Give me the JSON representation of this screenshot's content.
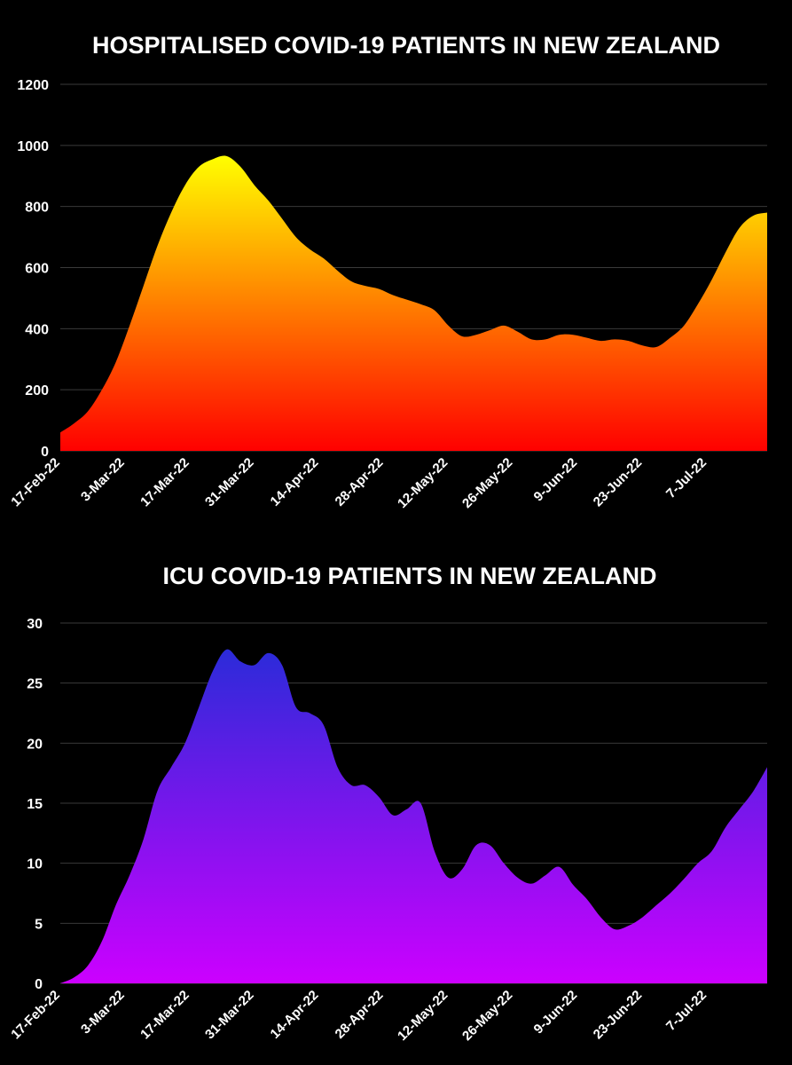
{
  "chart_data": [
    {
      "type": "area",
      "title": "HOSPITALISED COVID-19 PATIENTS IN NEW ZEALAND",
      "xlabel": "",
      "ylabel": "",
      "ylim": [
        0,
        1200
      ],
      "yticks": [
        "0",
        "200",
        "400",
        "600",
        "800",
        "1000",
        "1200"
      ],
      "xticks": [
        "17-Feb-22",
        "3-Mar-22",
        "17-Mar-22",
        "31-Mar-22",
        "14-Apr-22",
        "28-Apr-22",
        "12-May-22",
        "26-May-22",
        "9-Jun-22",
        "23-Jun-22",
        "7-Jul-22"
      ],
      "x_start": "17-Feb-22",
      "x_end": "20-Jul-22",
      "grid": true,
      "gradient_colors": [
        "#ffff00",
        "#ff0000"
      ],
      "series": [
        {
          "x": [
            "17-Feb-22",
            "20-Feb-22",
            "23-Feb-22",
            "26-Feb-22",
            "1-Mar-22",
            "4-Mar-22",
            "7-Mar-22",
            "10-Mar-22",
            "13-Mar-22",
            "16-Mar-22",
            "19-Mar-22",
            "22-Mar-22",
            "25-Mar-22",
            "28-Mar-22",
            "31-Mar-22",
            "3-Apr-22",
            "6-Apr-22",
            "9-Apr-22",
            "12-Apr-22",
            "15-Apr-22",
            "18-Apr-22",
            "21-Apr-22",
            "24-Apr-22",
            "27-Apr-22",
            "30-Apr-22",
            "3-May-22",
            "6-May-22",
            "9-May-22",
            "12-May-22",
            "15-May-22",
            "18-May-22",
            "21-May-22",
            "24-May-22",
            "27-May-22",
            "30-May-22",
            "2-Jun-22",
            "5-Jun-22",
            "8-Jun-22",
            "11-Jun-22",
            "14-Jun-22",
            "17-Jun-22",
            "20-Jun-22",
            "23-Jun-22",
            "26-Jun-22",
            "29-Jun-22",
            "2-Jul-22",
            "5-Jul-22",
            "8-Jul-22",
            "11-Jul-22",
            "14-Jul-22",
            "17-Jul-22",
            "20-Jul-22"
          ],
          "values": [
            60,
            90,
            130,
            200,
            290,
            410,
            540,
            670,
            780,
            870,
            930,
            955,
            965,
            930,
            870,
            820,
            760,
            700,
            660,
            630,
            590,
            555,
            540,
            530,
            510,
            495,
            480,
            460,
            410,
            375,
            380,
            395,
            410,
            390,
            365,
            365,
            380,
            380,
            370,
            360,
            365,
            360,
            345,
            340,
            370,
            410,
            480,
            560,
            650,
            730,
            770,
            780
          ]
        }
      ]
    },
    {
      "type": "area",
      "title": "ICU COVID-19 PATIENTS IN NEW ZEALAND",
      "xlabel": "",
      "ylabel": "",
      "ylim": [
        0,
        30
      ],
      "yticks": [
        "0",
        "5",
        "10",
        "15",
        "20",
        "25",
        "30"
      ],
      "xticks": [
        "17-Feb-22",
        "3-Mar-22",
        "17-Mar-22",
        "31-Mar-22",
        "14-Apr-22",
        "28-Apr-22",
        "12-May-22",
        "26-May-22",
        "9-Jun-22",
        "23-Jun-22",
        "7-Jul-22"
      ],
      "x_start": "17-Feb-22",
      "x_end": "20-Jul-22",
      "grid": true,
      "gradient_colors": [
        "#2b2bd9",
        "#cc00ff"
      ],
      "series": [
        {
          "x": [
            "17-Feb-22",
            "20-Feb-22",
            "23-Feb-22",
            "26-Feb-22",
            "1-Mar-22",
            "4-Mar-22",
            "7-Mar-22",
            "10-Mar-22",
            "13-Mar-22",
            "16-Mar-22",
            "19-Mar-22",
            "22-Mar-22",
            "25-Mar-22",
            "28-Mar-22",
            "31-Mar-22",
            "3-Apr-22",
            "6-Apr-22",
            "9-Apr-22",
            "12-Apr-22",
            "15-Apr-22",
            "18-Apr-22",
            "21-Apr-22",
            "24-Apr-22",
            "27-Apr-22",
            "30-Apr-22",
            "3-May-22",
            "6-May-22",
            "9-May-22",
            "12-May-22",
            "15-May-22",
            "18-May-22",
            "21-May-22",
            "24-May-22",
            "27-May-22",
            "30-May-22",
            "2-Jun-22",
            "5-Jun-22",
            "8-Jun-22",
            "11-Jun-22",
            "14-Jun-22",
            "17-Jun-22",
            "20-Jun-22",
            "23-Jun-22",
            "26-Jun-22",
            "29-Jun-22",
            "2-Jul-22",
            "5-Jul-22",
            "8-Jul-22",
            "11-Jul-22",
            "14-Jul-22",
            "17-Jul-22",
            "20-Jul-22"
          ],
          "values": [
            0,
            0.5,
            1.5,
            3.5,
            6.5,
            9,
            12,
            16,
            18,
            20,
            23,
            26,
            27.8,
            26.8,
            26.5,
            27.5,
            26.5,
            23,
            22.5,
            21.5,
            18,
            16.5,
            16.5,
            15.5,
            14,
            14.5,
            15,
            11,
            8.8,
            9.5,
            11.5,
            11.5,
            10,
            8.8,
            8.3,
            9,
            9.7,
            8.2,
            7,
            5.5,
            4.5,
            4.8,
            5.5,
            6.5,
            7.5,
            8.7,
            10,
            11,
            13,
            14.5,
            16,
            18
          ]
        }
      ]
    }
  ]
}
